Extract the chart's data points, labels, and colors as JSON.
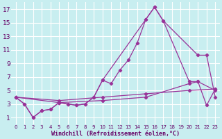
{
  "xlabel": "Windchill (Refroidissement éolien,°C)",
  "background_color": "#c8eef0",
  "grid_color": "#ffffff",
  "line_color": "#993399",
  "xlim": [
    -0.5,
    23.5
  ],
  "ylim": [
    0,
    18
  ],
  "xticks": [
    0,
    1,
    2,
    3,
    4,
    5,
    6,
    7,
    8,
    9,
    10,
    11,
    12,
    13,
    14,
    15,
    16,
    17,
    18,
    19,
    20,
    21,
    22,
    23
  ],
  "yticks": [
    1,
    3,
    5,
    7,
    9,
    11,
    13,
    15,
    17
  ],
  "series": [
    {
      "x": [
        0,
        5,
        10,
        15,
        20,
        23
      ],
      "y": [
        4,
        3.5,
        4,
        4.5,
        5,
        5.2
      ]
    },
    {
      "x": [
        0,
        5,
        10,
        15,
        20,
        21,
        23
      ],
      "y": [
        4,
        3.2,
        3.5,
        4,
        6,
        6.3,
        5
      ]
    },
    {
      "x": [
        0,
        1,
        2,
        3,
        4,
        5,
        6,
        7,
        8,
        9,
        10,
        11,
        12,
        13,
        14,
        15,
        16,
        17,
        21,
        22,
        23
      ],
      "y": [
        4,
        3,
        1,
        2,
        2.2,
        3.2,
        3,
        2.8,
        3,
        4,
        6.5,
        6,
        8,
        9.5,
        12,
        15.5,
        17.3,
        15.3,
        10.2,
        10.2,
        4
      ]
    },
    {
      "x": [
        0,
        1,
        2,
        3,
        4,
        5,
        6,
        7,
        8,
        9,
        10,
        15,
        16,
        17,
        20,
        21,
        22,
        23
      ],
      "y": [
        4,
        3,
        1,
        2,
        2.2,
        3.2,
        3,
        2.8,
        3,
        4,
        6.5,
        15.5,
        17.3,
        15.3,
        6.3,
        6.3,
        2.8,
        5.2
      ]
    }
  ]
}
